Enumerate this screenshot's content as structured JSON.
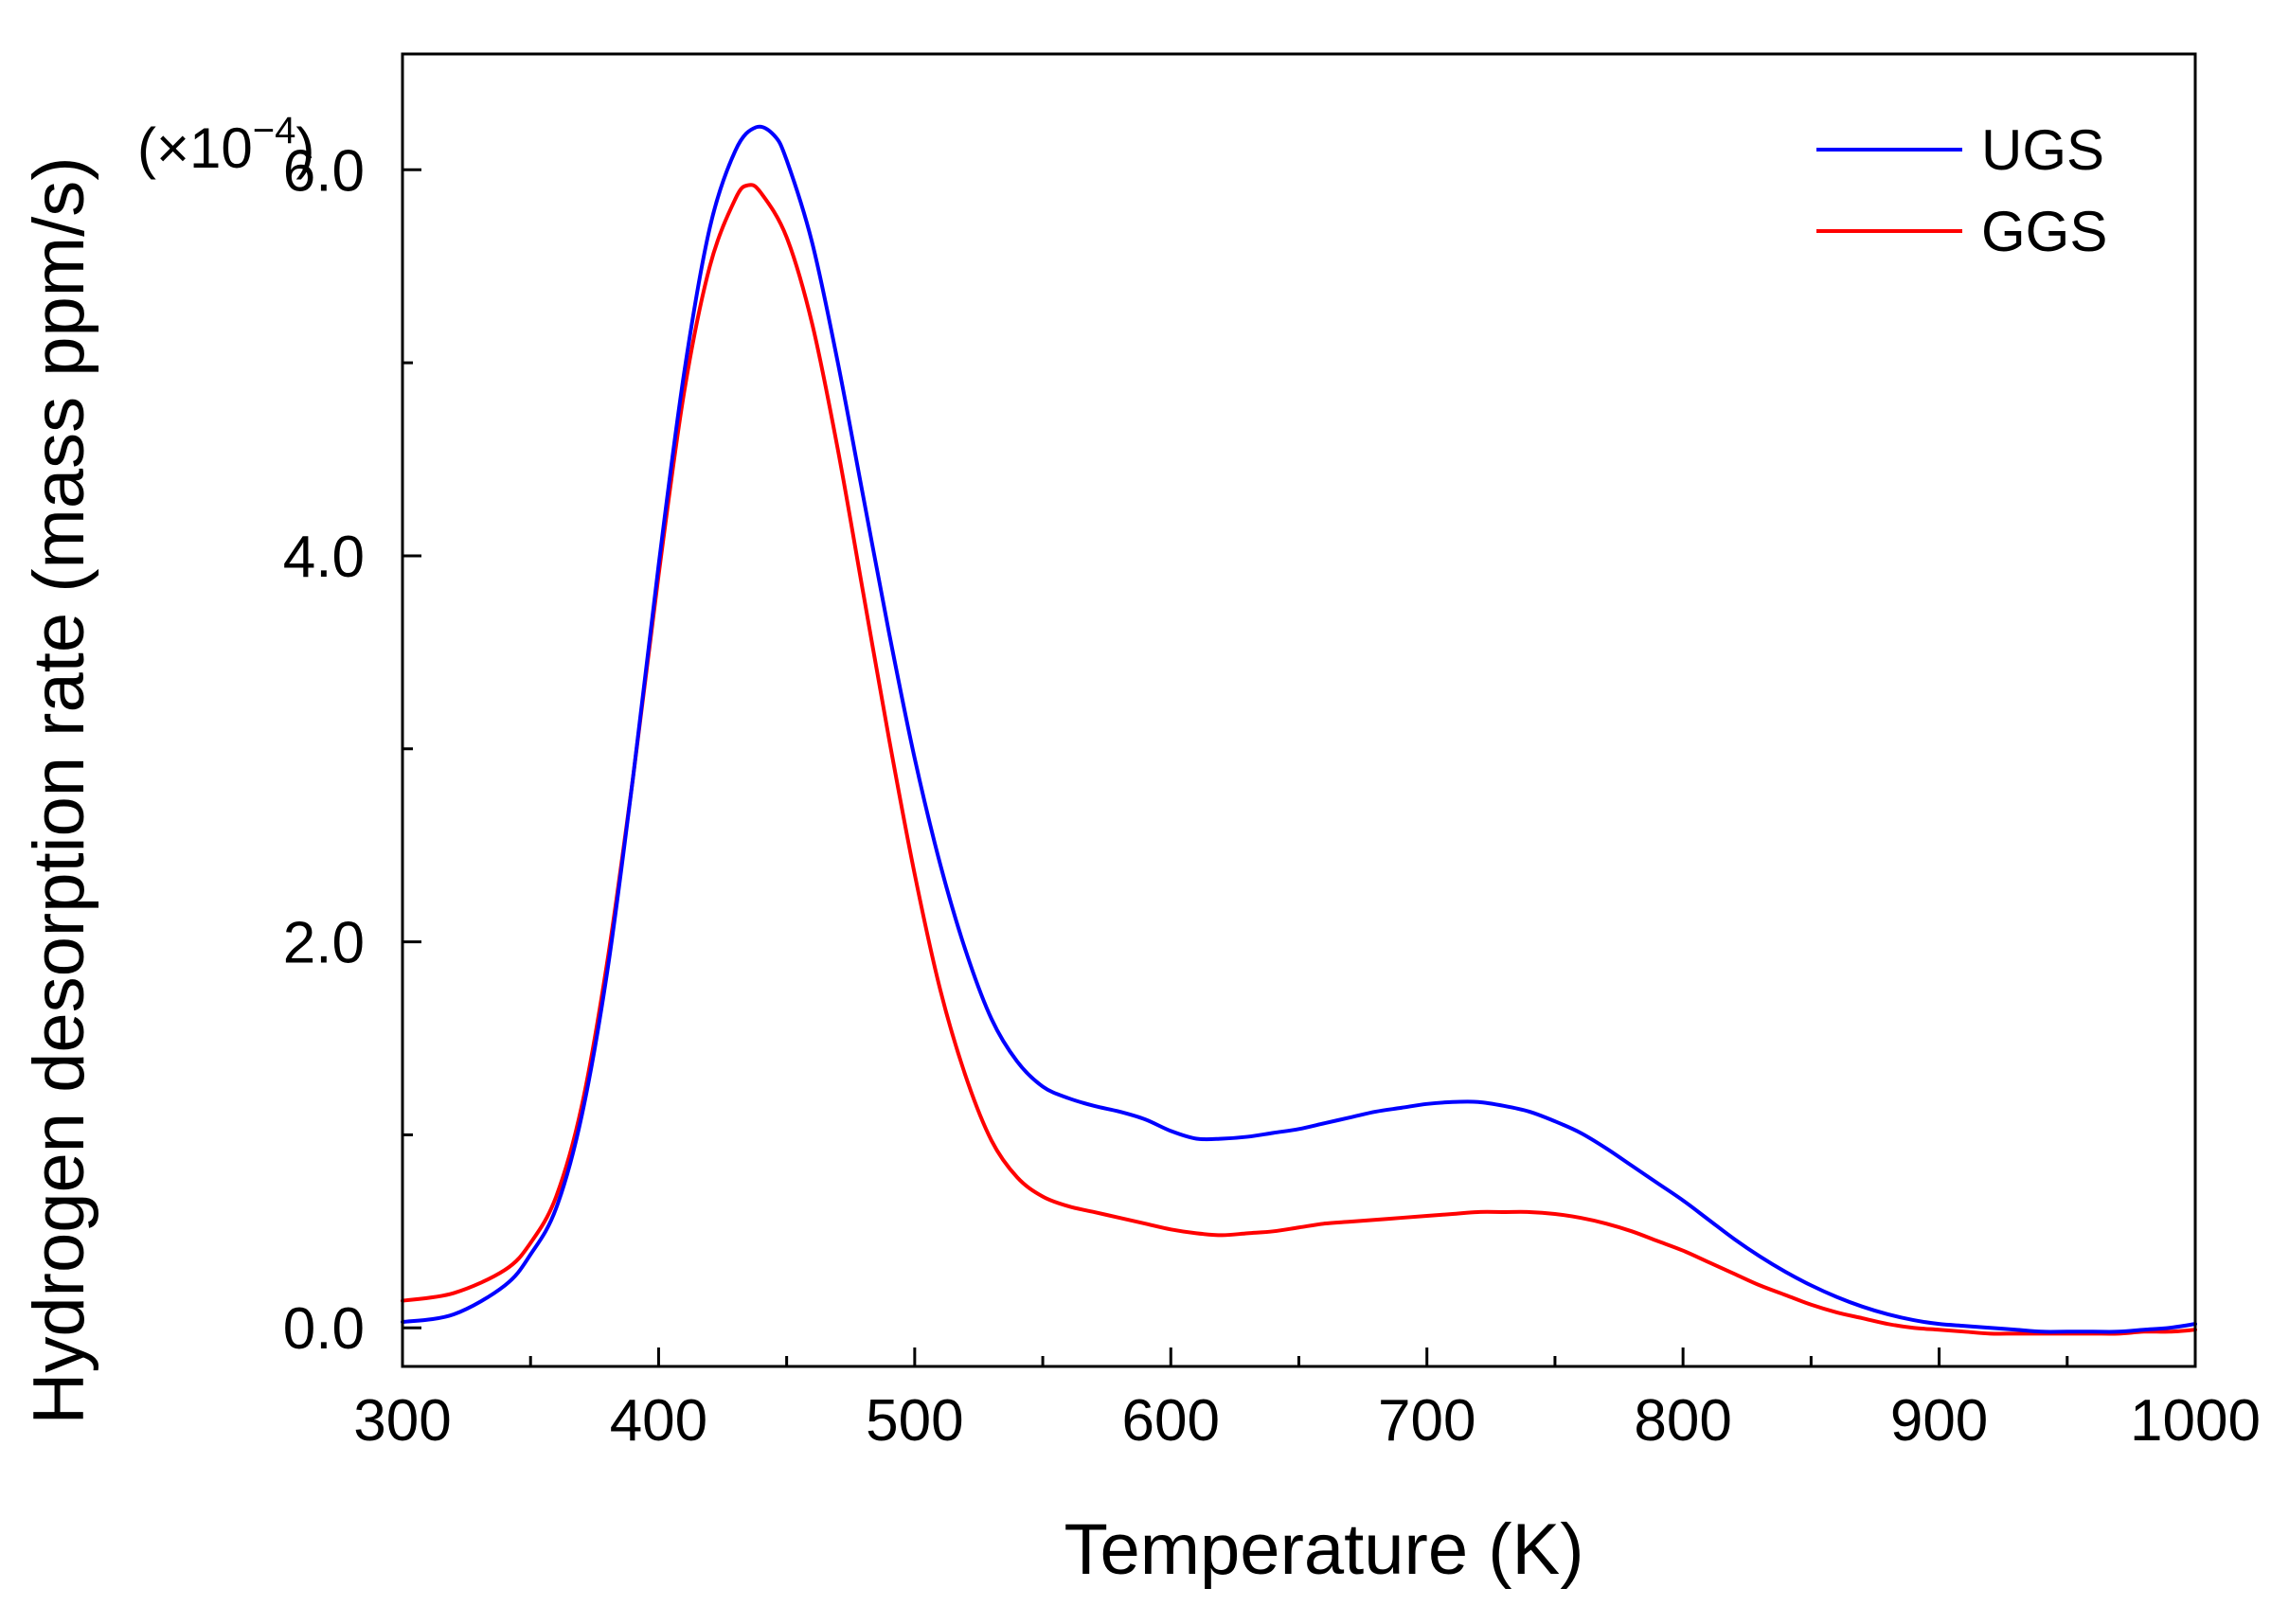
{
  "chart_data": {
    "type": "line",
    "title": "",
    "xlabel": "Temperature (K)",
    "ylabel": "Hydrogen desorption rate (mass ppm/s)",
    "y_multiplier": {
      "base": "(×10",
      "exponent": "−4",
      "close": ")"
    },
    "xlim": [
      300,
      1000
    ],
    "ylim": [
      -0.2,
      6.6
    ],
    "x_ticks": [
      300,
      400,
      500,
      600,
      700,
      800,
      900,
      1000
    ],
    "x_tick_labels": [
      "300",
      "400",
      "500",
      "600",
      "700",
      "800",
      "900",
      "1000"
    ],
    "x_minor_ticks": [
      350,
      450,
      550,
      650,
      750,
      850,
      950
    ],
    "y_ticks": [
      0,
      2,
      4,
      6
    ],
    "y_tick_labels": [
      "0.0",
      "2.0",
      "4.0",
      "6.0"
    ],
    "y_minor_ticks": [
      1,
      3,
      5
    ],
    "grid": false,
    "legend_position": "top-right",
    "series": [
      {
        "name": "UGS",
        "color": "#0000ff",
        "x": [
          300,
          320,
          340,
          350,
          360,
          370,
          380,
          390,
          400,
          410,
          420,
          430,
          438,
          445,
          450,
          460,
          470,
          480,
          490,
          500,
          510,
          520,
          530,
          540,
          550,
          560,
          570,
          580,
          590,
          600,
          610,
          620,
          630,
          640,
          650,
          660,
          670,
          680,
          690,
          700,
          710,
          720,
          730,
          740,
          750,
          760,
          770,
          780,
          790,
          800,
          810,
          820,
          830,
          840,
          850,
          860,
          870,
          880,
          890,
          900,
          910,
          920,
          930,
          940,
          950,
          960,
          970,
          980,
          990,
          1000
        ],
        "y": [
          0.03,
          0.07,
          0.22,
          0.38,
          0.62,
          1.1,
          1.85,
          2.85,
          3.95,
          4.95,
          5.7,
          6.1,
          6.22,
          6.18,
          6.05,
          5.62,
          5.0,
          4.3,
          3.6,
          2.95,
          2.4,
          1.95,
          1.6,
          1.38,
          1.25,
          1.19,
          1.15,
          1.12,
          1.08,
          1.02,
          0.98,
          0.98,
          0.99,
          1.01,
          1.03,
          1.06,
          1.09,
          1.12,
          1.14,
          1.16,
          1.17,
          1.17,
          1.15,
          1.12,
          1.07,
          1.01,
          0.93,
          0.84,
          0.75,
          0.66,
          0.56,
          0.46,
          0.37,
          0.29,
          0.22,
          0.16,
          0.11,
          0.07,
          0.04,
          0.02,
          0.01,
          0.0,
          -0.01,
          -0.02,
          -0.02,
          -0.02,
          -0.02,
          -0.01,
          0.0,
          0.02
        ]
      },
      {
        "name": "GGS",
        "color": "#ff0000",
        "x": [
          300,
          320,
          340,
          350,
          360,
          370,
          380,
          390,
          400,
          410,
          420,
          430,
          435,
          440,
          450,
          460,
          470,
          480,
          490,
          500,
          510,
          520,
          530,
          540,
          550,
          560,
          570,
          580,
          590,
          600,
          610,
          620,
          630,
          640,
          650,
          660,
          670,
          680,
          690,
          700,
          710,
          720,
          730,
          740,
          750,
          760,
          770,
          780,
          790,
          800,
          810,
          820,
          830,
          840,
          850,
          860,
          870,
          880,
          890,
          900,
          910,
          920,
          930,
          940,
          950,
          960,
          970,
          980,
          990,
          1000
        ],
        "y": [
          0.14,
          0.18,
          0.3,
          0.44,
          0.68,
          1.15,
          1.9,
          2.85,
          3.9,
          4.85,
          5.5,
          5.85,
          5.92,
          5.88,
          5.65,
          5.2,
          4.55,
          3.8,
          3.05,
          2.35,
          1.75,
          1.3,
          0.97,
          0.78,
          0.68,
          0.63,
          0.6,
          0.57,
          0.54,
          0.51,
          0.49,
          0.48,
          0.49,
          0.5,
          0.52,
          0.54,
          0.55,
          0.56,
          0.57,
          0.58,
          0.59,
          0.6,
          0.6,
          0.6,
          0.59,
          0.57,
          0.54,
          0.5,
          0.45,
          0.4,
          0.34,
          0.28,
          0.22,
          0.17,
          0.12,
          0.08,
          0.05,
          0.02,
          0.0,
          -0.01,
          -0.02,
          -0.03,
          -0.03,
          -0.03,
          -0.03,
          -0.03,
          -0.03,
          -0.02,
          -0.02,
          -0.01
        ]
      }
    ]
  }
}
